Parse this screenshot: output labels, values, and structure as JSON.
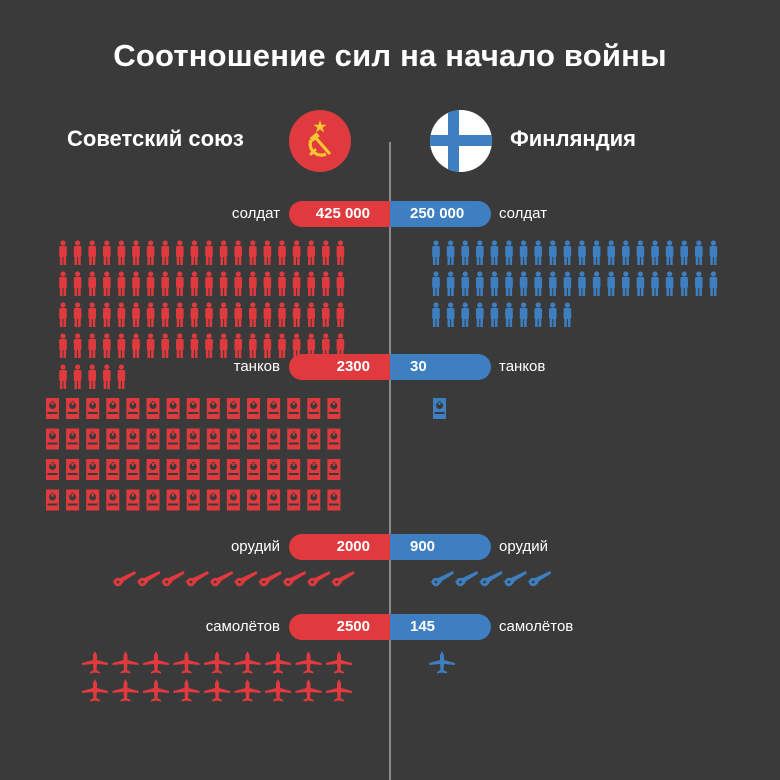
{
  "title": "Соотношение сил на начало войны",
  "colors": {
    "background": "#3a3a3a",
    "soviet": "#e03a3e",
    "finland": "#3d7fc1",
    "divider": "#8a8a8a"
  },
  "soviet": {
    "name": "Советский союз",
    "flag_icon": "ussr-flag-icon"
  },
  "finland": {
    "name": "Финляндия",
    "flag_icon": "finland-flag-icon"
  },
  "rows": [
    {
      "key": "soldiers",
      "label": "солдат",
      "soviet_value": "425 000",
      "finland_value": "250 000",
      "icon": "soldier-icon",
      "soviet_icon_count": 85,
      "finland_icon_count": 50
    },
    {
      "key": "tanks",
      "label": "танков",
      "soviet_value": "2300",
      "finland_value": "30",
      "icon": "tank-icon",
      "soviet_icon_count": 60,
      "finland_icon_count": 1
    },
    {
      "key": "guns",
      "label": "орудий",
      "soviet_value": "2000",
      "finland_value": "900",
      "icon": "artillery-icon",
      "soviet_icon_count": 10,
      "finland_icon_count": 5
    },
    {
      "key": "planes",
      "label": "самолётов",
      "soviet_value": "2500",
      "finland_value": "145",
      "icon": "plane-icon",
      "soviet_icon_count": 18,
      "finland_icon_count": 1
    }
  ]
}
